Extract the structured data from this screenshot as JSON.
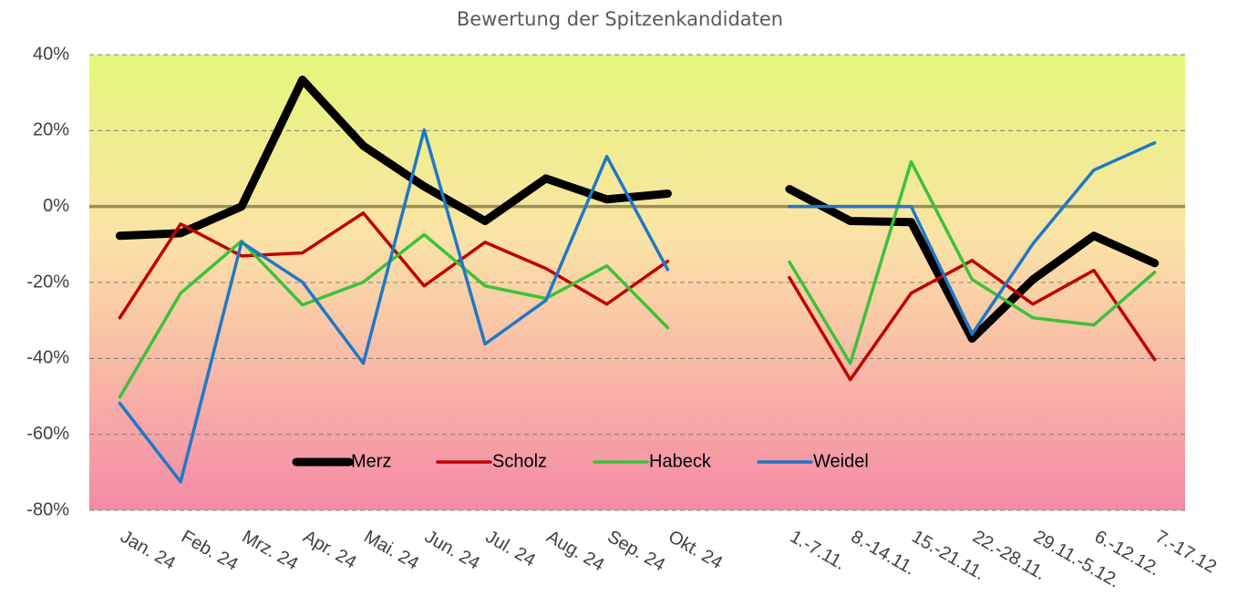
{
  "chart_data": {
    "type": "line",
    "title": "Bewertung der Spitzenkandidaten",
    "categories": [
      "Jan. 24",
      "Feb. 24",
      "Mrz. 24",
      "Apr. 24",
      "Mai. 24",
      "Jun. 24",
      "Jul. 24",
      "Aug. 24",
      "Sep. 24",
      "Okt. 24",
      null,
      "1.-7.11.",
      "8.-14.11.",
      "15.-21.11.",
      "22.-28.11.",
      "29.11.-5.12.",
      "6.-12.12.",
      "7.-17.12"
    ],
    "series": [
      {
        "name": "Merz",
        "color": "#000000",
        "values": [
          -7.7,
          -7,
          0,
          33.4,
          16,
          5.3,
          -3.8,
          7.4,
          1.9,
          3.4,
          null,
          4.6,
          -3.8,
          -4.1,
          -34.8,
          -19.2,
          -7.7,
          -14.9
        ]
      },
      {
        "name": "Scholz",
        "color": "#c00000",
        "values": [
          -29.3,
          -4.6,
          -13,
          -12.2,
          -1.7,
          -20.9,
          -9.4,
          -16.3,
          -25.7,
          -14.4,
          null,
          -18.7,
          -45.6,
          -22.8,
          -14.2,
          -25.7,
          -16.8,
          -40.3
        ]
      },
      {
        "name": "Habeck",
        "color": "#3cc13c",
        "values": [
          -50.2,
          -22.8,
          -9.1,
          -25.9,
          -19.9,
          -7.4,
          -20.9,
          -24.2,
          -15.6,
          -31.9,
          null,
          -14.6,
          -41.3,
          11.8,
          -19.2,
          -29.3,
          -31.2,
          -17.3
        ]
      },
      {
        "name": "Weidel",
        "color": "#1f78c8",
        "values": [
          -51.8,
          -72.5,
          -9.4,
          -19.9,
          -41.3,
          20.2,
          -36.2,
          -24.7,
          13.2,
          -16.6,
          null,
          0,
          0,
          0,
          -33.6,
          -9.8,
          9.6,
          16.8
        ]
      }
    ],
    "ylim": [
      -80,
      40
    ],
    "yticks": [
      {
        "value": -80,
        "label": "-80%"
      },
      {
        "value": -60,
        "label": "-60%"
      },
      {
        "value": -40,
        "label": "-40%"
      },
      {
        "value": -20,
        "label": "-20%"
      },
      {
        "value": 0,
        "label": "0%"
      },
      {
        "value": 20,
        "label": "20%"
      },
      {
        "value": 40,
        "label": "40%"
      }
    ],
    "grid": true,
    "legend": "bottom"
  }
}
